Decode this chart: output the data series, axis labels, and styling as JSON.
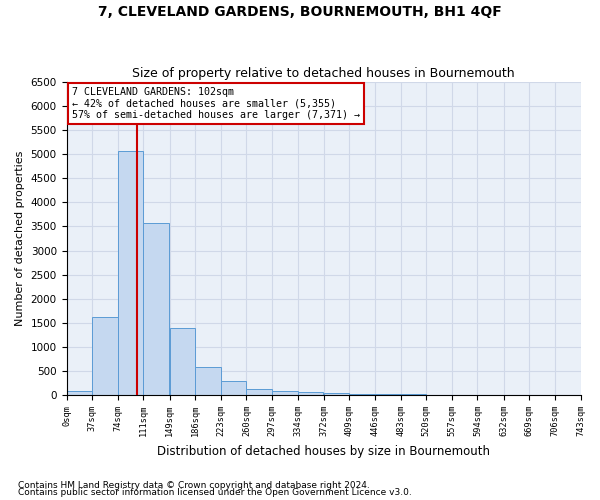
{
  "title": "7, CLEVELAND GARDENS, BOURNEMOUTH, BH1 4QF",
  "subtitle": "Size of property relative to detached houses in Bournemouth",
  "xlabel": "Distribution of detached houses by size in Bournemouth",
  "ylabel": "Number of detached properties",
  "footnote1": "Contains HM Land Registry data © Crown copyright and database right 2024.",
  "footnote2": "Contains public sector information licensed under the Open Government Licence v3.0.",
  "bin_labels": [
    "0sqm",
    "37sqm",
    "74sqm",
    "111sqm",
    "149sqm",
    "186sqm",
    "223sqm",
    "260sqm",
    "297sqm",
    "334sqm",
    "372sqm",
    "409sqm",
    "446sqm",
    "483sqm",
    "520sqm",
    "557sqm",
    "594sqm",
    "632sqm",
    "669sqm",
    "706sqm",
    "743sqm"
  ],
  "bin_edges": [
    0,
    37,
    74,
    111,
    149,
    186,
    223,
    260,
    297,
    334,
    372,
    409,
    446,
    483,
    520,
    557,
    594,
    632,
    669,
    706,
    743
  ],
  "bar_heights": [
    75,
    1625,
    5075,
    3575,
    1400,
    575,
    285,
    130,
    90,
    65,
    50,
    30,
    20,
    10,
    5,
    0,
    0,
    0,
    0,
    0
  ],
  "bar_color": "#c5d8f0",
  "bar_edgecolor": "#5b9bd5",
  "property_size": 102,
  "property_line_color": "#cc0000",
  "annotation_line1": "7 CLEVELAND GARDENS: 102sqm",
  "annotation_line2": "← 42% of detached houses are smaller (5,355)",
  "annotation_line3": "57% of semi-detached houses are larger (7,371) →",
  "annotation_box_color": "#cc0000",
  "ylim": [
    0,
    6500
  ],
  "yticks": [
    0,
    500,
    1000,
    1500,
    2000,
    2500,
    3000,
    3500,
    4000,
    4500,
    5000,
    5500,
    6000,
    6500
  ],
  "grid_color": "#d0d8e8",
  "background_color": "#eaf0f8",
  "title_fontsize": 10,
  "subtitle_fontsize": 9,
  "footnote_fontsize": 6.5
}
